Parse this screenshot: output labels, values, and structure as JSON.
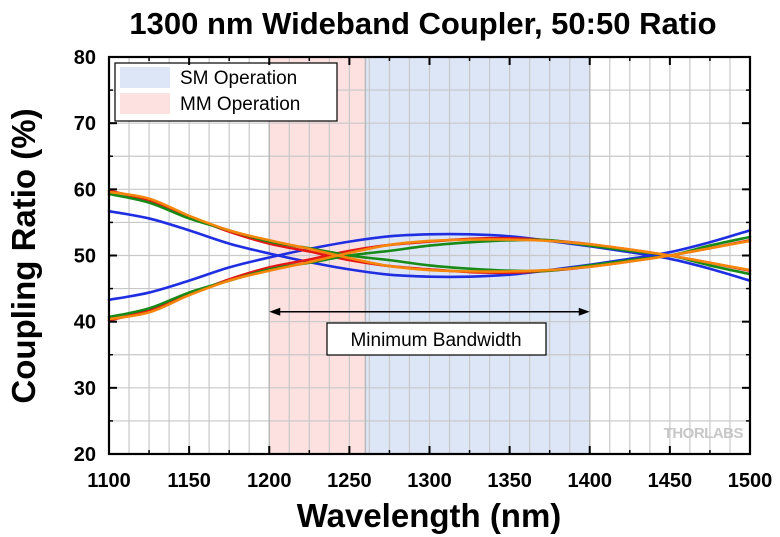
{
  "chart_data": {
    "type": "line",
    "title": "1300 nm Wideband Coupler, 50:50 Ratio",
    "xlabel": "Wavelength (nm)",
    "ylabel": "Coupling Ratio (%)",
    "xlim": [
      1100,
      1500
    ],
    "ylim": [
      20,
      80
    ],
    "xticks": [
      1100,
      1150,
      1200,
      1250,
      1300,
      1350,
      1400,
      1450,
      1500
    ],
    "yticks": [
      20,
      30,
      40,
      50,
      60,
      70,
      80
    ],
    "grid": true,
    "legend_position": "top-left",
    "bands": [
      {
        "name": "SM Operation",
        "x0": 1260,
        "x1": 1400,
        "color": "#dde6f6"
      },
      {
        "name": "MM Operation",
        "x0": 1200,
        "x1": 1260,
        "color": "#fde0e0"
      }
    ],
    "annotation": {
      "text": "Minimum Bandwidth",
      "x0": 1200,
      "x1": 1400,
      "y": 41.5
    },
    "watermark": "THORLABS",
    "x": [
      1100,
      1125,
      1150,
      1175,
      1200,
      1225,
      1250,
      1275,
      1300,
      1325,
      1350,
      1375,
      1400,
      1425,
      1450,
      1475,
      1500
    ],
    "series": [
      {
        "color": "#1f2ee0",
        "values": [
          56.7,
          55.6,
          53.8,
          51.8,
          50.3,
          49.0,
          47.9,
          47.1,
          46.8,
          46.8,
          47.1,
          47.8,
          48.6,
          49.5,
          50.5,
          52.0,
          53.8
        ]
      },
      {
        "color": "#1f2ee0",
        "values": [
          43.3,
          44.4,
          46.2,
          48.2,
          49.7,
          51.0,
          52.1,
          52.9,
          53.2,
          53.2,
          52.9,
          52.2,
          51.4,
          50.5,
          49.5,
          48.0,
          46.2
        ]
      },
      {
        "color": "#e51616",
        "values": [
          59.8,
          58.3,
          55.9,
          53.6,
          51.8,
          50.6,
          49.3,
          48.4,
          47.9,
          47.5,
          47.4,
          47.7,
          48.3,
          49.1,
          50.0,
          51.1,
          52.3
        ]
      },
      {
        "color": "#e51616",
        "values": [
          40.2,
          41.7,
          44.1,
          46.4,
          48.2,
          49.4,
          50.7,
          51.6,
          52.1,
          52.5,
          52.6,
          52.3,
          51.7,
          50.9,
          50.0,
          48.9,
          47.7
        ]
      },
      {
        "color": "#178a17",
        "values": [
          59.3,
          58.0,
          55.6,
          53.8,
          52.1,
          51.1,
          50.0,
          49.3,
          48.5,
          48.0,
          47.7,
          47.7,
          48.5,
          49.3,
          50.0,
          51.5,
          52.8
        ]
      },
      {
        "color": "#178a17",
        "values": [
          40.7,
          42.0,
          44.4,
          46.2,
          47.9,
          48.9,
          50.0,
          50.7,
          51.5,
          52.0,
          52.3,
          52.3,
          51.5,
          50.7,
          50.0,
          48.5,
          47.2
        ]
      },
      {
        "color": "#f5860b",
        "values": [
          59.6,
          58.6,
          56.0,
          53.8,
          52.3,
          51.0,
          49.6,
          48.4,
          47.8,
          47.6,
          47.6,
          47.8,
          48.3,
          49.1,
          50.0,
          51.1,
          52.2
        ]
      },
      {
        "color": "#f5860b",
        "values": [
          40.4,
          41.4,
          44.0,
          46.2,
          47.7,
          49.0,
          50.4,
          51.6,
          52.2,
          52.4,
          52.4,
          52.2,
          51.7,
          50.9,
          50.0,
          48.9,
          47.8
        ]
      }
    ]
  }
}
